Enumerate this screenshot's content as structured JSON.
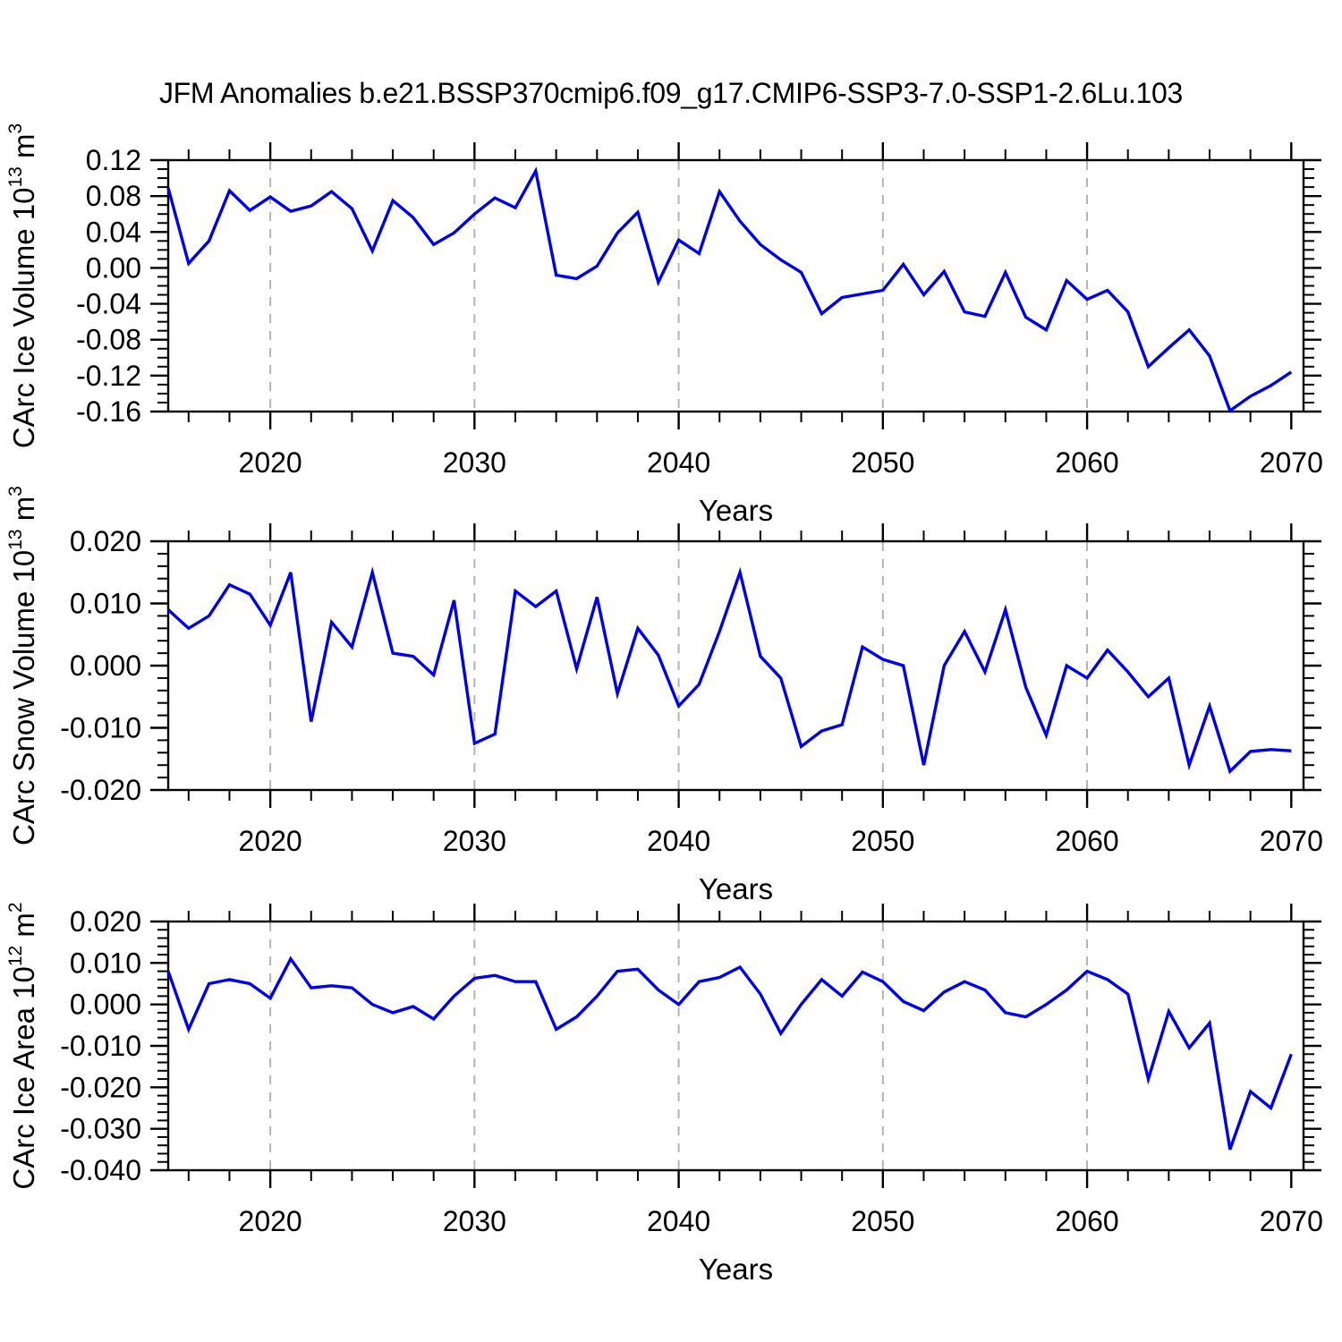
{
  "title": "JFM Anomalies b.e21.BSSP370cmip6.f09_g17.CMIP6-SSP3-7.0-SSP1-2.6Lu.103",
  "colors": {
    "line": "#0000f0",
    "grid": "#b3b3b3",
    "axis": "#000000",
    "text": "#000000",
    "background": "#ffffff"
  },
  "years": [
    2015,
    2016,
    2017,
    2018,
    2019,
    2020,
    2021,
    2022,
    2023,
    2024,
    2025,
    2026,
    2027,
    2028,
    2029,
    2030,
    2031,
    2032,
    2033,
    2034,
    2035,
    2036,
    2037,
    2038,
    2039,
    2040,
    2041,
    2042,
    2043,
    2044,
    2045,
    2046,
    2047,
    2048,
    2049,
    2050,
    2051,
    2052,
    2053,
    2054,
    2055,
    2056,
    2057,
    2058,
    2059,
    2060,
    2061,
    2062,
    2063,
    2064,
    2065,
    2066,
    2067,
    2068,
    2069,
    2070
  ],
  "x_axis": {
    "label": "Years",
    "ticks": [
      "2020",
      "2030",
      "2040",
      "2050",
      "2060",
      "2070"
    ],
    "minor_step": 2,
    "range": [
      2015,
      2070.6
    ],
    "grid_years": [
      2020,
      2030,
      2040,
      2050,
      2060
    ],
    "grid_style": "dashed"
  },
  "chart_data": [
    {
      "id": "ice-volume",
      "type": "line",
      "ylabel": "CArc Ice Volume 10^{13} m^{3}",
      "xlabel": "Years",
      "ylim": [
        -0.16,
        0.12
      ],
      "yticks": [
        "0.12",
        "0.08",
        "0.04",
        "0.00",
        "-0.04",
        "-0.08",
        "-0.12",
        "-0.16"
      ],
      "ytick_minor_step": 0.01,
      "values": [
        0.089,
        0.005,
        0.03,
        0.086,
        0.064,
        0.079,
        0.063,
        0.069,
        0.085,
        0.066,
        0.019,
        0.075,
        0.056,
        0.026,
        0.039,
        0.06,
        0.078,
        0.067,
        0.108,
        -0.008,
        -0.012,
        0.002,
        0.039,
        0.062,
        -0.016,
        0.031,
        0.016,
        0.085,
        0.052,
        0.026,
        0.009,
        -0.005,
        -0.051,
        -0.033,
        -0.029,
        -0.025,
        0.004,
        -0.03,
        -0.004,
        -0.049,
        -0.054,
        -0.005,
        -0.055,
        -0.069,
        -0.014,
        -0.035,
        -0.025,
        -0.049,
        -0.11,
        -0.089,
        -0.069,
        -0.098,
        -0.159,
        -0.143,
        -0.131,
        -0.116
      ]
    },
    {
      "id": "snow-volume",
      "type": "line",
      "ylabel": "CArc Snow Volume 10^{13} m^{3}",
      "xlabel": "Years",
      "ylim": [
        -0.02,
        0.02
      ],
      "yticks": [
        "0.020",
        "0.010",
        "0.000",
        "-0.010",
        "-0.020"
      ],
      "ytick_minor_step": 0.002,
      "values": [
        0.009,
        0.006,
        0.008,
        0.013,
        0.0115,
        0.0065,
        0.015,
        -0.009,
        0.007,
        0.003,
        0.015,
        0.002,
        0.0015,
        -0.0015,
        0.0105,
        -0.0125,
        -0.011,
        0.012,
        0.0095,
        0.012,
        -0.0005,
        0.011,
        -0.0045,
        0.006,
        0.0017,
        -0.0065,
        -0.003,
        0.0055,
        0.015,
        0.0015,
        -0.002,
        -0.013,
        -0.0105,
        -0.0095,
        0.003,
        0.001,
        0.0,
        -0.016,
        0.0,
        0.0055,
        -0.001,
        0.009,
        -0.0035,
        -0.0112,
        0.0,
        -0.002,
        0.0025,
        -0.001,
        -0.005,
        -0.002,
        -0.016,
        -0.0065,
        -0.017,
        -0.0138,
        -0.0135,
        -0.0137
      ]
    },
    {
      "id": "ice-area",
      "type": "line",
      "ylabel": "CArc Ice Area 10^{12} m^{2}",
      "xlabel": "Years",
      "ylim": [
        -0.04,
        0.02
      ],
      "yticks": [
        "0.020",
        "0.010",
        "0.000",
        "-0.010",
        "-0.020",
        "-0.030",
        "-0.040"
      ],
      "ytick_minor_step": 0.002,
      "values": [
        0.008,
        -0.006,
        0.005,
        0.006,
        0.005,
        0.0015,
        0.011,
        0.004,
        0.0045,
        0.004,
        0.0,
        -0.002,
        -0.0005,
        -0.0035,
        0.002,
        0.0063,
        0.007,
        0.0055,
        0.0055,
        -0.006,
        -0.003,
        0.002,
        0.008,
        0.0085,
        0.0035,
        0.0,
        0.0055,
        0.0065,
        0.009,
        0.0025,
        -0.007,
        0.0,
        0.006,
        0.002,
        0.0078,
        0.0055,
        0.0007,
        -0.0015,
        0.003,
        0.0055,
        0.0035,
        -0.002,
        -0.003,
        0.0,
        0.0035,
        0.008,
        0.006,
        0.0025,
        -0.018,
        -0.0017,
        -0.0105,
        -0.0045,
        -0.035,
        -0.021,
        -0.025,
        -0.012
      ]
    }
  ]
}
